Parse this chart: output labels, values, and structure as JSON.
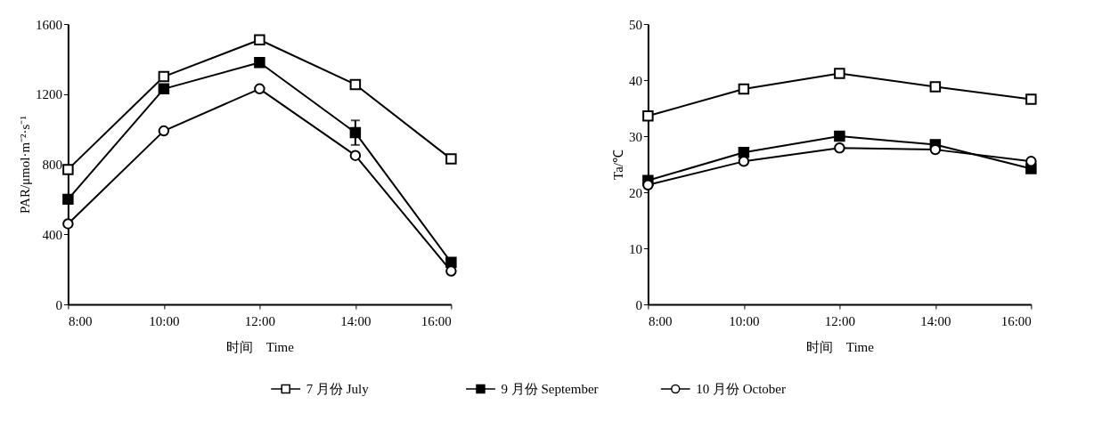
{
  "chart_data": [
    {
      "type": "line",
      "xlabel": "时间　Time",
      "ylabel": "PAR/μmol·m⁻²·s⁻¹",
      "x": [
        8,
        10,
        12,
        14,
        16
      ],
      "xlim": [
        8,
        16
      ],
      "xticks": [
        {
          "value": 8,
          "label": "8:00"
        },
        {
          "value": 10,
          "label": "10:00"
        },
        {
          "value": 12,
          "label": "12:00"
        },
        {
          "value": 14,
          "label": "14:00"
        },
        {
          "value": 16,
          "label": "16:00"
        }
      ],
      "ylim": [
        0,
        1600
      ],
      "yticks": [
        0,
        400,
        800,
        1200,
        1600
      ],
      "grid": false,
      "legend": "bottom",
      "line_style": "solid",
      "series": [
        {
          "name": "7 月份 July",
          "color": "#000000",
          "marker": "square",
          "values": [
            770,
            1300,
            1510,
            1255,
            830
          ]
        },
        {
          "name": "9 月份 September",
          "color": "#000000",
          "marker": "square",
          "values": [
            600,
            1230,
            1380,
            980,
            240
          ],
          "errors": [
            null,
            null,
            null,
            70,
            null
          ]
        },
        {
          "name": "10 月份 October",
          "color": "#000000",
          "marker": "circle",
          "values": [
            460,
            990,
            1230,
            850,
            190
          ]
        }
      ]
    },
    {
      "type": "line",
      "xlabel": "时间　Time",
      "ylabel": "Ta/℃",
      "x": [
        8,
        10,
        12,
        14,
        16
      ],
      "xlim": [
        8,
        16
      ],
      "xticks": [
        {
          "value": 8,
          "label": "8:00"
        },
        {
          "value": 10,
          "label": "10:00"
        },
        {
          "value": 12,
          "label": "12:00"
        },
        {
          "value": 14,
          "label": "14:00"
        },
        {
          "value": 16,
          "label": "16:00"
        }
      ],
      "ylim": [
        0,
        50
      ],
      "yticks": [
        0,
        10,
        20,
        30,
        40,
        50
      ],
      "grid": false,
      "line_style": "solid",
      "series": [
        {
          "color": "#000000",
          "marker": "square",
          "values": [
            33.6,
            38.4,
            41.2,
            38.8,
            36.6
          ]
        },
        {
          "color": "#000000",
          "marker": "square",
          "values": [
            22.1,
            27.1,
            30.0,
            28.5,
            24.2
          ]
        },
        {
          "color": "#000000",
          "marker": "circle",
          "values": [
            21.3,
            25.5,
            27.9,
            27.6,
            25.5
          ]
        }
      ]
    }
  ]
}
